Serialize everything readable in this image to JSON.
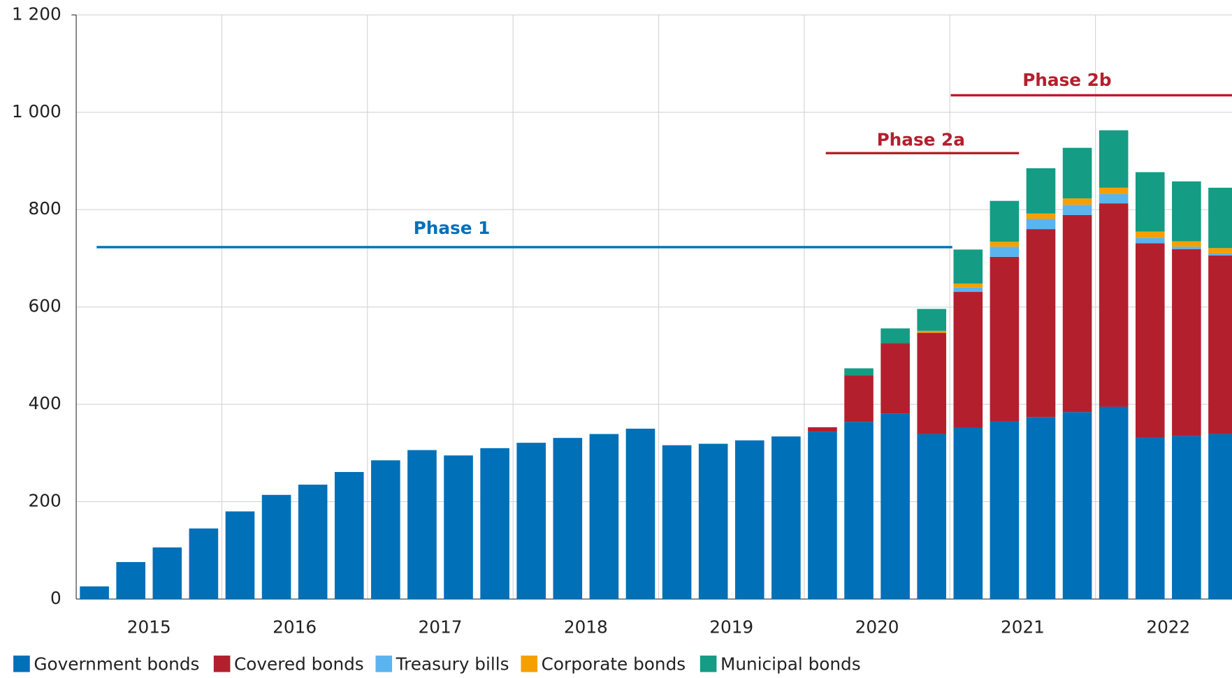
{
  "chart_data": {
    "type": "stacked_bar",
    "categories": [
      null,
      null,
      null,
      null,
      null,
      null,
      null,
      null,
      null,
      null,
      null,
      null,
      null,
      null,
      null,
      null,
      null,
      null,
      null,
      null,
      null,
      null,
      null,
      null,
      null,
      null,
      null,
      null,
      null,
      null,
      null,
      null
    ],
    "groups": [
      "2015",
      "2016",
      "2017",
      "2018",
      "2019",
      "2020",
      "2021",
      "2022"
    ],
    "series": [
      {
        "name": "Government bonds",
        "color": "#0070b8",
        "values": [
          26,
          76,
          106,
          145,
          180,
          214,
          235,
          261,
          285,
          306,
          295,
          310,
          321,
          331,
          339,
          350,
          316,
          319,
          326,
          334,
          344,
          364,
          381,
          339,
          352,
          365,
          374,
          384,
          395,
          332,
          335,
          339
        ]
      },
      {
        "name": "Covered bonds",
        "color": "#b41f2e",
        "values": [
          0,
          0,
          0,
          0,
          0,
          0,
          0,
          0,
          0,
          0,
          0,
          0,
          0,
          0,
          0,
          0,
          0,
          0,
          0,
          0,
          9,
          96,
          145,
          208,
          279,
          338,
          386,
          405,
          418,
          399,
          384,
          367
        ]
      },
      {
        "name": "Treasury bills",
        "color": "#5ab4f0",
        "values": [
          0,
          0,
          0,
          0,
          0,
          0,
          0,
          0,
          0,
          0,
          0,
          0,
          0,
          0,
          0,
          0,
          0,
          0,
          0,
          0,
          0,
          0,
          0,
          0,
          9,
          21,
          21,
          21,
          19,
          11,
          5,
          4
        ]
      },
      {
        "name": "Corporate bonds",
        "color": "#f5a000",
        "values": [
          0,
          0,
          0,
          0,
          0,
          0,
          0,
          0,
          0,
          0,
          0,
          0,
          0,
          0,
          0,
          0,
          0,
          0,
          0,
          0,
          0,
          0,
          0,
          4,
          8,
          10,
          11,
          13,
          13,
          13,
          11,
          11
        ]
      },
      {
        "name": "Municipal bonds",
        "color": "#149c84",
        "values": [
          0,
          0,
          0,
          0,
          0,
          0,
          0,
          0,
          0,
          0,
          0,
          0,
          0,
          0,
          0,
          0,
          0,
          0,
          0,
          0,
          0,
          14,
          30,
          45,
          70,
          84,
          93,
          104,
          118,
          122,
          123,
          124
        ]
      }
    ],
    "annotations": [
      {
        "text": "Phase 1",
        "color": "#0070b8",
        "value": 723
      },
      {
        "text": "Phase 2a",
        "color": "#b41f2e",
        "value": 916
      },
      {
        "text": "Phase 2b",
        "color": "#b41f2e",
        "value": 1035
      }
    ],
    "ylim": [
      0,
      1200
    ],
    "yticks": [
      0,
      200,
      400,
      600,
      800,
      {
        "value": 1000,
        "label": "1 000"
      },
      {
        "value": 1200,
        "label": "1 200"
      }
    ],
    "grid": true,
    "legend": "bottom"
  }
}
